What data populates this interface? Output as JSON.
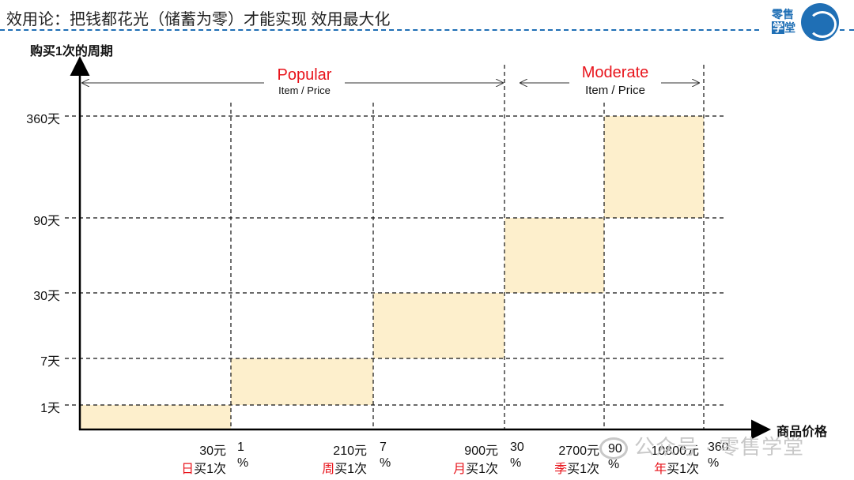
{
  "header": {
    "title": "效用论：把钱都花光（储蓄为零）才能实现 效用最大化",
    "brand": {
      "line1": "零售",
      "line2a": "学",
      "line2b": "堂",
      "color": "#1f6fb5"
    }
  },
  "diagram": {
    "y_axis_label": "购买1次的周期",
    "x_axis_label": "商品价格",
    "y_ticks": [
      "1天",
      "7天",
      "30天",
      "90天",
      "360天"
    ],
    "columns": [
      {
        "price": "30元",
        "freq_hl": "日",
        "freq_rest": "买1次",
        "pct_top": "1",
        "pct_bottom": "%"
      },
      {
        "price": "210元",
        "freq_hl": "周",
        "freq_rest": "买1次",
        "pct_top": "7",
        "pct_bottom": "%"
      },
      {
        "price": "900元",
        "freq_hl": "月",
        "freq_rest": "买1次",
        "pct_top": "30",
        "pct_bottom": "%"
      },
      {
        "price": "2700元",
        "freq_hl": "季",
        "freq_rest": "买1次",
        "pct_top": "90",
        "pct_bottom": "%"
      },
      {
        "price": "10800元",
        "freq_hl": "年",
        "freq_rest": "买1次",
        "pct_top": "360",
        "pct_bottom": "%"
      }
    ],
    "sections": [
      {
        "title": "Popular",
        "subtitle": "Item / Price"
      },
      {
        "title": "Moderate",
        "subtitle": "Item / Price"
      }
    ],
    "colors": {
      "box_fill": "#fdefcc",
      "accent_red": "#e8141c"
    }
  },
  "watermark": {
    "text": "公众号 · 零售学堂"
  }
}
